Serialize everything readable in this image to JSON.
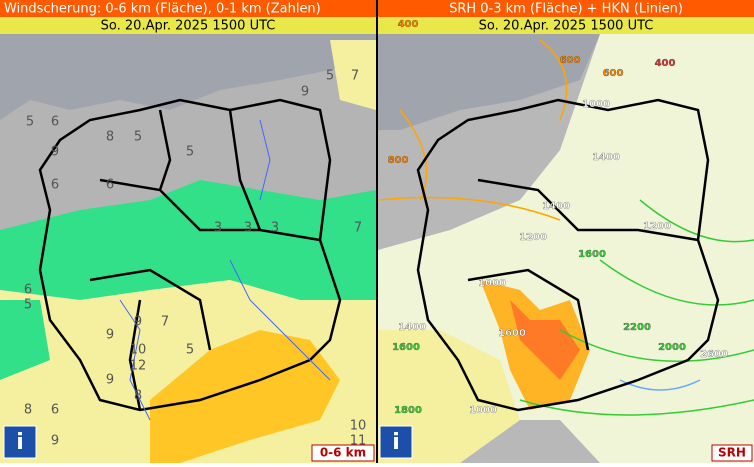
{
  "panels": [
    {
      "title": "Windscherung: 0-6 km (Fläche), 0-1 km (Zahlen)",
      "date": "So. 20.Apr. 2025 1500 UTC",
      "legend": "0-6 km",
      "info": "i",
      "labels": [
        "5",
        "7",
        "9",
        "6",
        "9",
        "5",
        "6",
        "6",
        "5",
        "8",
        "7",
        "3",
        "3",
        "3",
        "5",
        "6",
        "5",
        "7",
        "9",
        "9",
        "10",
        "12",
        "9",
        "8",
        "5",
        "6",
        "8",
        "10",
        "11",
        "9"
      ]
    },
    {
      "title": "SRH 0-3 km (Fläche) + HKN (Linien)",
      "date": "So. 20.Apr. 2025 1500 UTC",
      "legend": "SRH",
      "info": "i",
      "labels": [
        "400",
        "600",
        "600",
        "400",
        "1000",
        "800",
        "1400",
        "1400",
        "1200",
        "1200",
        "1600",
        "1000",
        "1600",
        "1400",
        "2200",
        "1600",
        "2000",
        "2600",
        "1800",
        "1000"
      ]
    }
  ]
}
